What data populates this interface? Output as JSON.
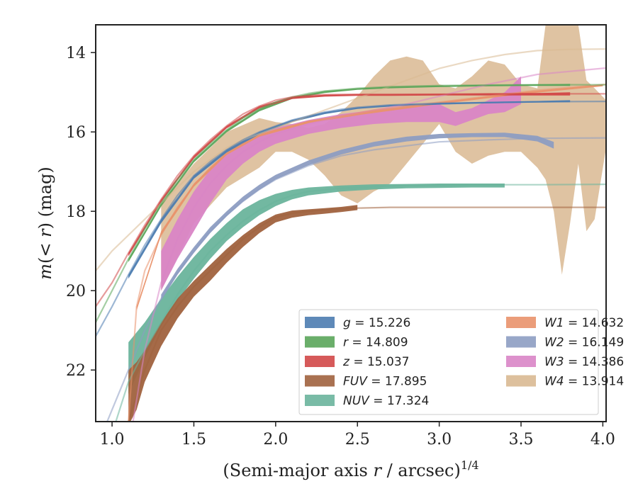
{
  "chart_data": {
    "type": "line",
    "xlabel": "(Semi-major axis r / arcsec)",
    "xlabel_var": "r",
    "xlabel_pre": "(Semi-major axis ",
    "xlabel_post": " / arcsec)",
    "xlabel_exp": "1/4",
    "ylabel": "m(< r) (mag)",
    "ylabel_var": "m",
    "ylabel_mid": "(< ",
    "ylabel_var2": "r",
    "ylabel_post": ") (mag)",
    "xlim": [
      0.9,
      4.02
    ],
    "ylim": [
      23.3,
      13.3
    ],
    "y_inverted": true,
    "x_ticks": [
      {
        "value": 1.0,
        "label": "1.0"
      },
      {
        "value": 1.5,
        "label": "1.5"
      },
      {
        "value": 2.0,
        "label": "2.0"
      },
      {
        "value": 2.5,
        "label": "2.5"
      },
      {
        "value": 3.0,
        "label": "3.0"
      },
      {
        "value": 3.5,
        "label": "3.5"
      },
      {
        "value": 4.0,
        "label": "4.0"
      }
    ],
    "y_ticks": [
      {
        "value": 14,
        "label": "14"
      },
      {
        "value": 16,
        "label": "16"
      },
      {
        "value": 18,
        "label": "18"
      },
      {
        "value": 20,
        "label": "20"
      },
      {
        "value": 22,
        "label": "22"
      }
    ],
    "grid": false,
    "legend_position": "lower-right",
    "series": [
      {
        "band": "g",
        "value": "15.226",
        "color": "#4c7cb0",
        "model": {
          "x": [
            0.9,
            1.0,
            1.1,
            1.2,
            1.3,
            1.4,
            1.5,
            1.6,
            1.7,
            1.8,
            1.9,
            2.0,
            2.1,
            2.2,
            2.3,
            2.4,
            2.5,
            2.7,
            3.0,
            3.3,
            3.6,
            4.02
          ],
          "y": [
            21.15,
            20.4,
            19.6,
            18.85,
            18.2,
            17.6,
            17.1,
            16.75,
            16.45,
            16.2,
            16.0,
            15.85,
            15.7,
            15.6,
            15.5,
            15.43,
            15.38,
            15.32,
            15.28,
            15.26,
            15.24,
            15.23
          ]
        },
        "band_x": [
          1.1,
          1.3,
          1.5,
          1.7,
          1.9,
          2.1,
          2.3,
          2.5,
          2.7,
          3.0,
          3.3,
          3.6,
          3.8
        ],
        "band_upper": [
          19.6,
          18.2,
          17.1,
          16.45,
          16.0,
          15.7,
          15.5,
          15.38,
          15.32,
          15.27,
          15.24,
          15.22,
          15.2
        ],
        "band_lower": [
          19.7,
          18.3,
          17.18,
          16.52,
          16.06,
          15.75,
          15.55,
          15.42,
          15.36,
          15.31,
          15.28,
          15.26,
          15.25
        ]
      },
      {
        "band": "r",
        "value": "14.809",
        "color": "#5aa55a",
        "model": {
          "x": [
            0.9,
            1.0,
            1.1,
            1.2,
            1.3,
            1.4,
            1.5,
            1.6,
            1.7,
            1.8,
            1.9,
            2.0,
            2.1,
            2.2,
            2.3,
            2.5,
            2.7,
            3.0,
            3.3,
            3.6,
            4.02
          ],
          "y": [
            20.8,
            20.0,
            19.2,
            18.45,
            17.8,
            17.2,
            16.7,
            16.3,
            15.95,
            15.65,
            15.42,
            15.25,
            15.12,
            15.03,
            14.97,
            14.9,
            14.86,
            14.83,
            14.82,
            14.81,
            14.81
          ]
        },
        "band_x": [
          1.1,
          1.3,
          1.5,
          1.7,
          1.9,
          2.1,
          2.3,
          2.5,
          2.7,
          3.0,
          3.3,
          3.6,
          3.8
        ],
        "band_upper": [
          19.2,
          17.8,
          16.7,
          15.95,
          15.42,
          15.12,
          14.97,
          14.9,
          14.86,
          14.83,
          14.81,
          14.8,
          14.79
        ],
        "band_lower": [
          19.28,
          17.88,
          16.77,
          16.01,
          15.48,
          15.17,
          15.02,
          14.94,
          14.9,
          14.87,
          14.85,
          14.84,
          14.84
        ]
      },
      {
        "band": "z",
        "value": "15.037",
        "color": "#d24848",
        "model": {
          "x": [
            0.9,
            1.0,
            1.1,
            1.2,
            1.3,
            1.4,
            1.5,
            1.6,
            1.7,
            1.8,
            1.9,
            2.0,
            2.1,
            2.2,
            2.3,
            2.5,
            2.7,
            3.0,
            3.3,
            3.6,
            4.02
          ],
          "y": [
            20.4,
            19.8,
            19.05,
            18.35,
            17.7,
            17.1,
            16.6,
            16.2,
            15.85,
            15.55,
            15.35,
            15.2,
            15.12,
            15.08,
            15.06,
            15.05,
            15.05,
            15.05,
            15.04,
            15.04,
            15.04
          ]
        },
        "band_x": [
          1.1,
          1.3,
          1.5,
          1.7,
          1.9,
          2.1,
          2.3,
          2.5,
          2.7,
          3.0,
          3.3,
          3.6,
          3.8
        ],
        "band_upper": [
          19.05,
          17.7,
          16.6,
          15.85,
          15.35,
          15.12,
          15.06,
          15.05,
          15.05,
          15.04,
          15.03,
          15.02,
          15.0
        ],
        "band_lower": [
          19.13,
          17.78,
          16.67,
          15.91,
          15.41,
          15.17,
          15.11,
          15.09,
          15.09,
          15.08,
          15.08,
          15.08,
          15.08
        ]
      },
      {
        "band": "FUV",
        "value": "17.895",
        "color": "#a0623e",
        "model": {
          "x": [
            1.0,
            1.1,
            1.2,
            1.3,
            1.4,
            1.5,
            1.6,
            1.7,
            1.8,
            1.9,
            2.0,
            2.1,
            2.2,
            2.3,
            2.5,
            2.7,
            3.0,
            3.3,
            3.6,
            4.02
          ],
          "y": [
            24.0,
            23.3,
            22.0,
            21.0,
            20.4,
            19.9,
            19.5,
            19.1,
            18.7,
            18.4,
            18.15,
            18.05,
            18.0,
            17.96,
            17.92,
            17.9,
            17.9,
            17.9,
            17.9,
            17.9
          ]
        },
        "band_x": [
          1.1,
          1.15,
          1.2,
          1.3,
          1.4,
          1.5,
          1.6,
          1.7,
          1.8,
          1.9,
          2.0,
          2.1,
          2.2,
          2.3,
          2.4,
          2.5
        ],
        "band_upper": [
          22.0,
          21.8,
          21.5,
          20.8,
          20.2,
          19.75,
          19.35,
          18.95,
          18.6,
          18.3,
          18.08,
          17.98,
          17.95,
          17.92,
          17.89,
          17.84
        ],
        "band_lower": [
          23.4,
          23.0,
          22.3,
          21.4,
          20.7,
          20.15,
          19.75,
          19.3,
          18.9,
          18.55,
          18.28,
          18.16,
          18.1,
          18.06,
          18.02,
          17.97
        ]
      },
      {
        "band": "NUV",
        "value": "17.324",
        "color": "#6ab49c",
        "model": {
          "x": [
            0.9,
            1.0,
            1.1,
            1.2,
            1.3,
            1.4,
            1.5,
            1.6,
            1.7,
            1.8,
            1.9,
            2.0,
            2.1,
            2.2,
            2.4,
            2.6,
            2.8,
            3.0,
            3.3,
            3.6,
            4.02
          ],
          "y": [
            24.5,
            23.6,
            22.3,
            21.5,
            20.8,
            20.1,
            19.5,
            19.0,
            18.6,
            18.25,
            17.97,
            17.75,
            17.6,
            17.5,
            17.42,
            17.38,
            17.35,
            17.34,
            17.33,
            17.33,
            17.32
          ]
        },
        "band_x": [
          1.1,
          1.2,
          1.3,
          1.4,
          1.5,
          1.6,
          1.7,
          1.8,
          1.9,
          2.0,
          2.1,
          2.2,
          2.4,
          2.6,
          2.8,
          3.0,
          3.2,
          3.4
        ],
        "band_upper": [
          21.3,
          20.8,
          20.2,
          19.65,
          19.15,
          18.7,
          18.3,
          17.95,
          17.72,
          17.56,
          17.46,
          17.4,
          17.35,
          17.32,
          17.31,
          17.3,
          17.3,
          17.3
        ],
        "band_lower": [
          22.6,
          21.7,
          20.9,
          20.25,
          19.7,
          19.2,
          18.75,
          18.4,
          18.1,
          17.87,
          17.7,
          17.6,
          17.5,
          17.45,
          17.42,
          17.41,
          17.4,
          17.4
        ]
      },
      {
        "band": "W1",
        "value": "14.632",
        "color": "#e9926c",
        "model": {
          "x": [
            1.1,
            1.15,
            1.2,
            1.3,
            1.4,
            1.5,
            1.6,
            1.7,
            1.8,
            1.9,
            2.0,
            2.2,
            2.4,
            2.6,
            2.8,
            3.0,
            3.3,
            3.6,
            4.02
          ],
          "y": [
            23.3,
            20.4,
            19.5,
            18.6,
            17.9,
            17.35,
            16.9,
            16.55,
            16.3,
            16.1,
            15.95,
            15.75,
            15.6,
            15.45,
            15.35,
            15.25,
            15.1,
            14.95,
            14.8
          ]
        },
        "band_x": [
          1.15,
          1.3,
          1.5,
          1.7,
          1.9,
          2.2,
          2.5,
          3.0,
          3.5,
          4.0
        ],
        "band_upper": [
          20.4,
          18.5,
          17.3,
          16.5,
          16.05,
          15.72,
          15.52,
          15.25,
          15.0,
          14.8
        ],
        "band_lower": [
          20.5,
          18.6,
          17.38,
          16.58,
          16.12,
          15.78,
          15.58,
          15.3,
          15.05,
          14.85
        ]
      },
      {
        "band": "W2",
        "value": "16.149",
        "color": "#8d9dc2",
        "model": {
          "x": [
            0.9,
            1.0,
            1.1,
            1.2,
            1.3,
            1.4,
            1.5,
            1.6,
            1.7,
            1.8,
            1.9,
            2.0,
            2.2,
            2.4,
            2.6,
            2.8,
            3.0,
            3.3,
            3.6,
            4.02
          ],
          "y": [
            24.0,
            23.0,
            22.0,
            21.0,
            20.2,
            19.55,
            19.0,
            18.5,
            18.1,
            17.75,
            17.45,
            17.2,
            16.85,
            16.6,
            16.45,
            16.35,
            16.25,
            16.2,
            16.16,
            16.15
          ]
        },
        "band_x": [
          1.3,
          1.4,
          1.5,
          1.6,
          1.7,
          1.8,
          1.9,
          2.0,
          2.2,
          2.4,
          2.6,
          2.8,
          3.0,
          3.2,
          3.4,
          3.6,
          3.7
        ],
        "band_upper": [
          20.1,
          19.45,
          18.9,
          18.4,
          18.0,
          17.63,
          17.33,
          17.08,
          16.72,
          16.45,
          16.25,
          16.12,
          16.05,
          16.03,
          16.02,
          16.1,
          16.25
        ],
        "band_lower": [
          20.25,
          19.6,
          19.05,
          18.55,
          18.13,
          17.76,
          17.46,
          17.2,
          16.84,
          16.57,
          16.37,
          16.24,
          16.16,
          16.13,
          16.13,
          16.24,
          16.42
        ]
      },
      {
        "band": "W3",
        "value": "14.386",
        "color": "#d985c6",
        "model": {
          "x": [
            1.1,
            1.2,
            1.3,
            1.4,
            1.5,
            1.6,
            1.7,
            1.8,
            1.9,
            2.0,
            2.2,
            2.4,
            2.6,
            2.8,
            3.0,
            3.3,
            3.6,
            4.02
          ],
          "y": [
            24.0,
            21.5,
            19.8,
            18.7,
            17.9,
            17.3,
            16.85,
            16.5,
            16.25,
            16.05,
            15.8,
            15.6,
            15.45,
            15.3,
            15.1,
            14.8,
            14.55,
            14.39
          ]
        },
        "band_x": [
          1.3,
          1.4,
          1.5,
          1.6,
          1.7,
          1.8,
          1.9,
          2.0,
          2.2,
          2.4,
          2.6,
          2.8,
          3.0,
          3.1,
          3.2,
          3.3,
          3.4,
          3.5
        ],
        "band_upper": [
          19.0,
          18.2,
          17.5,
          16.95,
          16.55,
          16.25,
          16.05,
          15.9,
          15.7,
          15.55,
          15.45,
          15.35,
          15.3,
          15.5,
          15.4,
          15.2,
          15.0,
          14.6
        ],
        "band_lower": [
          20.0,
          19.2,
          18.5,
          17.8,
          17.2,
          16.8,
          16.5,
          16.3,
          16.05,
          15.9,
          15.8,
          15.75,
          15.75,
          15.85,
          15.7,
          15.55,
          15.5,
          15.3
        ]
      },
      {
        "band": "W4",
        "value": "13.914",
        "color": "#d9b992",
        "model": {
          "x": [
            0.9,
            1.0,
            1.1,
            1.2,
            1.3,
            1.4,
            1.5,
            1.6,
            1.7,
            1.8,
            2.0,
            2.2,
            2.4,
            2.6,
            2.8,
            3.0,
            3.2,
            3.4,
            3.6,
            3.8,
            4.02
          ],
          "y": [
            19.5,
            19.0,
            18.6,
            18.2,
            17.8,
            17.4,
            17.0,
            16.7,
            16.4,
            16.2,
            15.9,
            15.6,
            15.3,
            15.0,
            14.7,
            14.4,
            14.2,
            14.05,
            13.95,
            13.92,
            13.91
          ]
        },
        "band_x": [
          1.3,
          1.5,
          1.7,
          1.9,
          2.0,
          2.1,
          2.2,
          2.3,
          2.4,
          2.5,
          2.6,
          2.7,
          2.8,
          2.9,
          3.0,
          3.1,
          3.2,
          3.3,
          3.4,
          3.5,
          3.6,
          3.65,
          3.7,
          3.75,
          3.8,
          3.85,
          3.9,
          3.95,
          4.02
        ],
        "band_upper": [
          17.8,
          16.8,
          16.0,
          15.65,
          15.75,
          15.8,
          15.9,
          15.8,
          15.5,
          15.1,
          14.6,
          14.2,
          14.1,
          14.2,
          14.8,
          14.9,
          14.6,
          14.2,
          14.3,
          14.8,
          14.9,
          13.3,
          13.3,
          13.3,
          13.3,
          13.3,
          14.7,
          14.9,
          15.2
        ],
        "band_lower": [
          20.0,
          18.3,
          17.4,
          16.9,
          16.5,
          16.5,
          16.7,
          17.1,
          17.6,
          17.8,
          17.5,
          17.3,
          16.8,
          16.3,
          15.8,
          16.5,
          16.8,
          16.6,
          16.5,
          16.5,
          16.9,
          17.2,
          18.0,
          19.6,
          18.3,
          16.8,
          18.5,
          18.2,
          16.4
        ]
      }
    ]
  }
}
